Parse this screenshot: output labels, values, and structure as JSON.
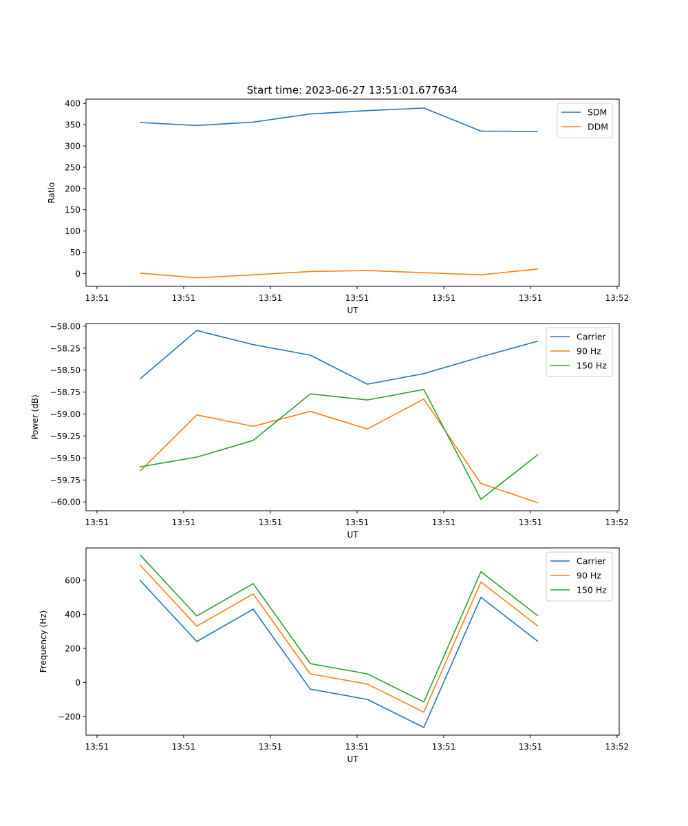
{
  "figure": {
    "title": "Start time: 2023-06-27 13:51:01.677634"
  },
  "chart_data": [
    {
      "type": "line",
      "title": "Start time: 2023-06-27 13:51:01.677634",
      "xlabel": "UT",
      "ylabel": "Ratio",
      "x_ticks": [
        "13:51",
        "13:51",
        "13:51",
        "13:51",
        "13:51",
        "13:51",
        "13:51",
        "13:52"
      ],
      "y_ticks": [
        0,
        50,
        100,
        150,
        200,
        250,
        300,
        350,
        400
      ],
      "ylim": [
        -30,
        410
      ],
      "legend": "top-right",
      "grid": false,
      "series": [
        {
          "name": "SDM",
          "color": "#1f77b4",
          "values": [
            355,
            348,
            356,
            375,
            383,
            389,
            335,
            334
          ]
        },
        {
          "name": "DDM",
          "color": "#ff7f0e",
          "values": [
            1,
            -10,
            -3,
            5,
            7,
            2,
            -3,
            11
          ]
        }
      ]
    },
    {
      "type": "line",
      "xlabel": "UT",
      "ylabel": "Power (dB)",
      "x_ticks": [
        "13:51",
        "13:51",
        "13:51",
        "13:51",
        "13:51",
        "13:51",
        "13:51",
        "13:52"
      ],
      "y_ticks": [
        -58.0,
        -58.25,
        -58.5,
        -58.75,
        -59.0,
        -59.25,
        -59.5,
        -59.75,
        -60.0
      ],
      "y_tick_labels": [
        "−58.00",
        "−58.25",
        "−58.50",
        "−58.75",
        "−59.00",
        "−59.25",
        "−59.50",
        "−59.75",
        "−60.00"
      ],
      "ylim": [
        -60.1,
        -57.97
      ],
      "legend": "top-right",
      "grid": false,
      "series": [
        {
          "name": "Carrier",
          "color": "#1f77b4",
          "values": [
            -58.6,
            -58.05,
            -58.21,
            -58.33,
            -58.66,
            -58.54,
            -58.35,
            -58.17
          ]
        },
        {
          "name": "90 Hz",
          "color": "#ff7f0e",
          "values": [
            -59.65,
            -59.01,
            -59.14,
            -58.97,
            -59.17,
            -58.83,
            -59.79,
            -60.01
          ]
        },
        {
          "name": "150 Hz",
          "color": "#2ca02c",
          "values": [
            -59.6,
            -59.49,
            -59.3,
            -58.77,
            -58.84,
            -58.72,
            -59.97,
            -59.46
          ]
        }
      ]
    },
    {
      "type": "line",
      "xlabel": "UT",
      "ylabel": "Frequency (Hz)",
      "x_ticks": [
        "13:51",
        "13:51",
        "13:51",
        "13:51",
        "13:51",
        "13:51",
        "13:51",
        "13:52"
      ],
      "y_ticks": [
        -200,
        0,
        200,
        400,
        600
      ],
      "y_tick_labels": [
        "−200",
        "0",
        "200",
        "400",
        "600"
      ],
      "ylim": [
        -310,
        790
      ],
      "legend": "top-right",
      "grid": false,
      "series": [
        {
          "name": "Carrier",
          "color": "#1f77b4",
          "values": [
            600,
            240,
            430,
            -40,
            -100,
            -265,
            500,
            240
          ]
        },
        {
          "name": "90 Hz",
          "color": "#ff7f0e",
          "values": [
            690,
            330,
            520,
            50,
            -10,
            -175,
            590,
            330
          ]
        },
        {
          "name": "150 Hz",
          "color": "#2ca02c",
          "values": [
            750,
            390,
            580,
            110,
            50,
            -115,
            650,
            390
          ]
        }
      ]
    }
  ]
}
